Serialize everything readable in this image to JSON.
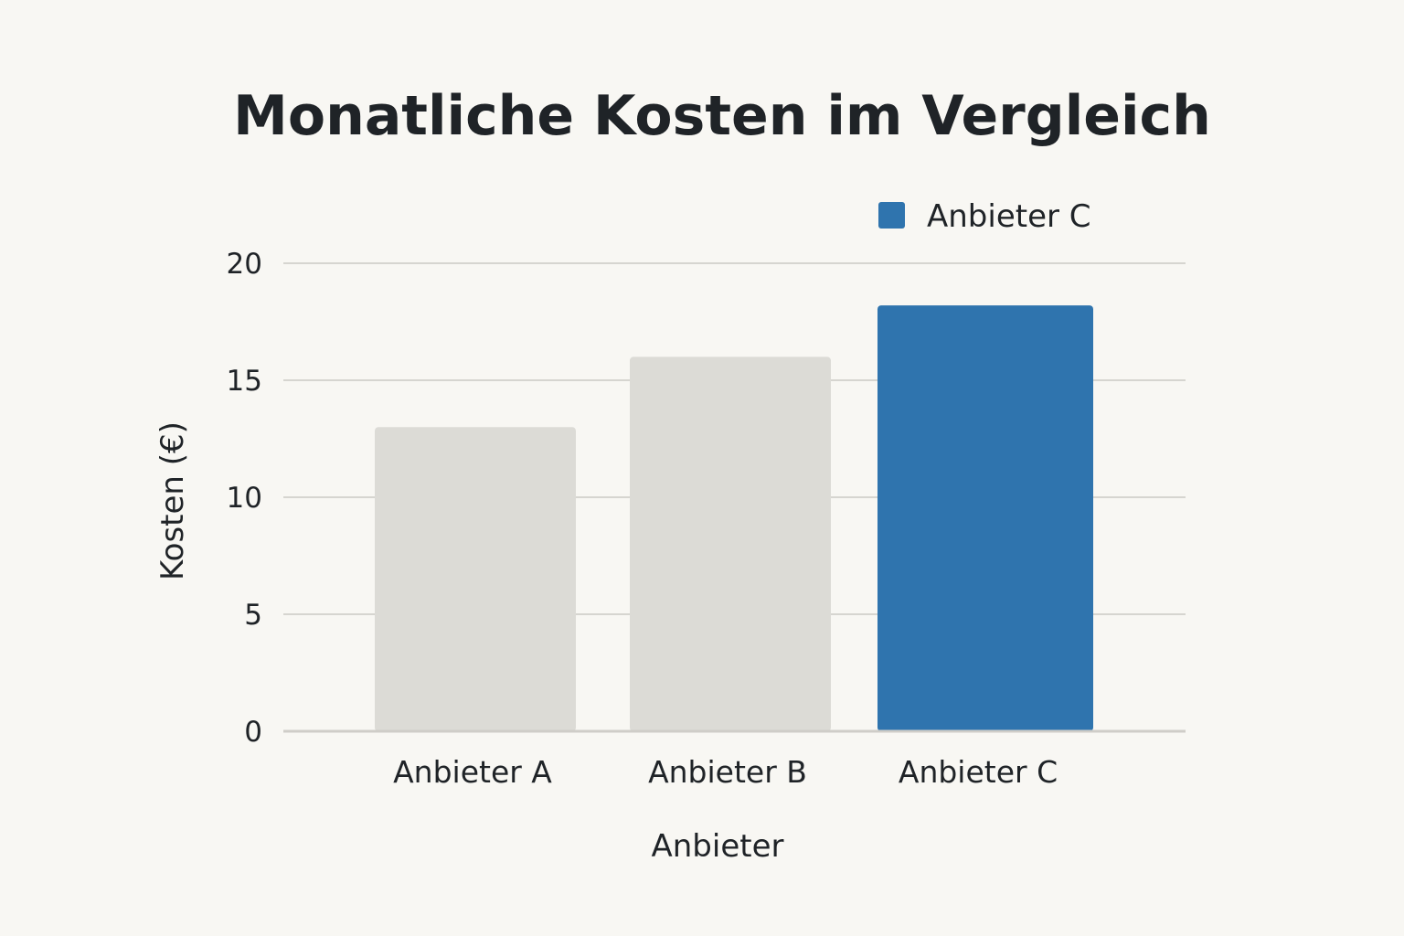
{
  "chart_data": {
    "type": "bar",
    "title": "Monatliche Kosten im Vergleich",
    "xlabel": "Anbieter",
    "ylabel": "Kosten (€)",
    "categories": [
      "Anbieter A",
      "Anbieter B",
      "Anbieter C"
    ],
    "values": [
      13,
      16,
      18.2
    ],
    "bar_colors": [
      "#dcdbd6",
      "#dcdbd6",
      "#2f74ae"
    ],
    "ylim": [
      0,
      20
    ],
    "yticks": [
      0,
      5,
      10,
      15,
      20
    ],
    "grid": true,
    "legend": {
      "position": "top-right",
      "entries": [
        {
          "label": "Anbieter C",
          "color": "#2f74ae"
        }
      ]
    }
  }
}
